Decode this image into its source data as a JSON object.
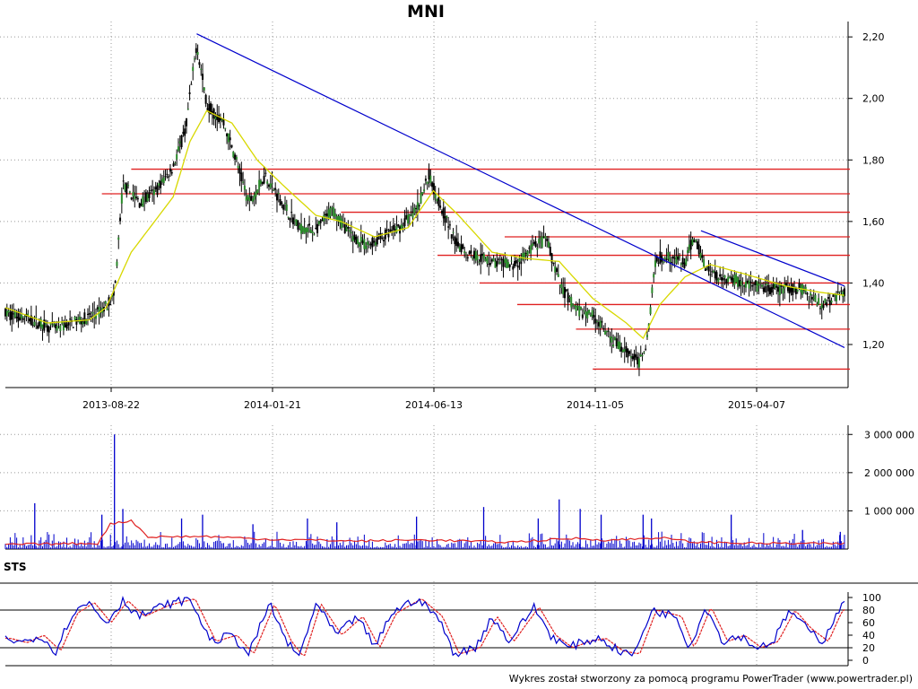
{
  "title": "MNI",
  "indicator_label": "STS",
  "footer": "Wykres został stworzony za pomocą programu PowerTrader (www.powertrader.pl)",
  "colors": {
    "candle": "#000000",
    "moving_average": "#d8d800",
    "trendline": "#0000cc",
    "support_resistance": "#e02020",
    "volume": "#0000cc",
    "volume_average": "#e02020",
    "sts_k": "#0000cc",
    "sts_d": "#e02020",
    "grid": "#999999"
  },
  "chart_data": [
    {
      "type": "candlestick",
      "title": "MNI",
      "x_tick_labels": [
        "2013-08-22",
        "2014-01-21",
        "2014-06-13",
        "2014-11-05",
        "2015-04-07"
      ],
      "y_tick_labels": [
        "1,20",
        "1,40",
        "1,60",
        "1,80",
        "2,00",
        "2,20"
      ],
      "y_ticks": [
        1.2,
        1.4,
        1.6,
        1.8,
        2.0,
        2.2
      ],
      "ylim": [
        1.06,
        2.25
      ],
      "grid": true,
      "price_anchors": [
        {
          "x": 0,
          "y": 1.3
        },
        {
          "x": 0.02,
          "y": 1.29
        },
        {
          "x": 0.04,
          "y": 1.27
        },
        {
          "x": 0.06,
          "y": 1.25
        },
        {
          "x": 0.08,
          "y": 1.27
        },
        {
          "x": 0.1,
          "y": 1.29
        },
        {
          "x": 0.115,
          "y": 1.31
        },
        {
          "x": 0.13,
          "y": 1.36
        },
        {
          "x": 0.14,
          "y": 1.72
        },
        {
          "x": 0.16,
          "y": 1.66
        },
        {
          "x": 0.18,
          "y": 1.7
        },
        {
          "x": 0.2,
          "y": 1.78
        },
        {
          "x": 0.215,
          "y": 1.9
        },
        {
          "x": 0.228,
          "y": 2.18
        },
        {
          "x": 0.24,
          "y": 1.98
        },
        {
          "x": 0.26,
          "y": 1.92
        },
        {
          "x": 0.275,
          "y": 1.8
        },
        {
          "x": 0.29,
          "y": 1.66
        },
        {
          "x": 0.31,
          "y": 1.75
        },
        {
          "x": 0.33,
          "y": 1.66
        },
        {
          "x": 0.35,
          "y": 1.58
        },
        {
          "x": 0.37,
          "y": 1.57
        },
        {
          "x": 0.39,
          "y": 1.64
        },
        {
          "x": 0.41,
          "y": 1.56
        },
        {
          "x": 0.43,
          "y": 1.52
        },
        {
          "x": 0.45,
          "y": 1.55
        },
        {
          "x": 0.47,
          "y": 1.58
        },
        {
          "x": 0.49,
          "y": 1.64
        },
        {
          "x": 0.505,
          "y": 1.75
        },
        {
          "x": 0.52,
          "y": 1.64
        },
        {
          "x": 0.535,
          "y": 1.54
        },
        {
          "x": 0.55,
          "y": 1.5
        },
        {
          "x": 0.57,
          "y": 1.48
        },
        {
          "x": 0.59,
          "y": 1.46
        },
        {
          "x": 0.61,
          "y": 1.46
        },
        {
          "x": 0.63,
          "y": 1.52
        },
        {
          "x": 0.645,
          "y": 1.54
        },
        {
          "x": 0.66,
          "y": 1.4
        },
        {
          "x": 0.68,
          "y": 1.31
        },
        {
          "x": 0.7,
          "y": 1.3
        },
        {
          "x": 0.72,
          "y": 1.22
        },
        {
          "x": 0.74,
          "y": 1.18
        },
        {
          "x": 0.755,
          "y": 1.14
        },
        {
          "x": 0.765,
          "y": 1.22
        },
        {
          "x": 0.775,
          "y": 1.48
        },
        {
          "x": 0.79,
          "y": 1.49
        },
        {
          "x": 0.81,
          "y": 1.46
        },
        {
          "x": 0.82,
          "y": 1.55
        },
        {
          "x": 0.835,
          "y": 1.45
        },
        {
          "x": 0.85,
          "y": 1.42
        },
        {
          "x": 0.87,
          "y": 1.41
        },
        {
          "x": 0.89,
          "y": 1.39
        },
        {
          "x": 0.91,
          "y": 1.38
        },
        {
          "x": 0.93,
          "y": 1.38
        },
        {
          "x": 0.95,
          "y": 1.38
        },
        {
          "x": 0.97,
          "y": 1.33
        },
        {
          "x": 0.985,
          "y": 1.35
        },
        {
          "x": 1.0,
          "y": 1.37
        }
      ],
      "moving_average": [
        {
          "x": 0,
          "y": 1.32
        },
        {
          "x": 0.05,
          "y": 1.27
        },
        {
          "x": 0.1,
          "y": 1.28
        },
        {
          "x": 0.12,
          "y": 1.32
        },
        {
          "x": 0.15,
          "y": 1.5
        },
        {
          "x": 0.2,
          "y": 1.68
        },
        {
          "x": 0.22,
          "y": 1.86
        },
        {
          "x": 0.24,
          "y": 1.96
        },
        {
          "x": 0.27,
          "y": 1.92
        },
        {
          "x": 0.3,
          "y": 1.8
        },
        {
          "x": 0.33,
          "y": 1.72
        },
        {
          "x": 0.37,
          "y": 1.62
        },
        {
          "x": 0.4,
          "y": 1.6
        },
        {
          "x": 0.44,
          "y": 1.55
        },
        {
          "x": 0.48,
          "y": 1.58
        },
        {
          "x": 0.51,
          "y": 1.7
        },
        {
          "x": 0.54,
          "y": 1.62
        },
        {
          "x": 0.58,
          "y": 1.5
        },
        {
          "x": 0.62,
          "y": 1.48
        },
        {
          "x": 0.66,
          "y": 1.47
        },
        {
          "x": 0.7,
          "y": 1.35
        },
        {
          "x": 0.74,
          "y": 1.27
        },
        {
          "x": 0.76,
          "y": 1.22
        },
        {
          "x": 0.78,
          "y": 1.33
        },
        {
          "x": 0.81,
          "y": 1.42
        },
        {
          "x": 0.84,
          "y": 1.46
        },
        {
          "x": 0.88,
          "y": 1.43
        },
        {
          "x": 0.93,
          "y": 1.39
        },
        {
          "x": 0.97,
          "y": 1.37
        },
        {
          "x": 1.0,
          "y": 1.36
        }
      ],
      "trendlines": [
        {
          "from": {
            "x": 0.228,
            "y": 2.21
          },
          "to": {
            "x": 1.0,
            "y": 1.19
          }
        },
        {
          "from": {
            "x": 0.829,
            "y": 1.57
          },
          "to": {
            "x": 1.0,
            "y": 1.39
          }
        }
      ],
      "support_resistance": [
        {
          "y": 1.77,
          "x_from": 0.15,
          "x_to": 1.0
        },
        {
          "y": 1.69,
          "x_from": 0.115,
          "x_to": 1.0
        },
        {
          "y": 1.63,
          "x_from": 0.4,
          "x_to": 1.0
        },
        {
          "y": 1.55,
          "x_from": 0.595,
          "x_to": 1.0
        },
        {
          "y": 1.49,
          "x_from": 0.515,
          "x_to": 1.0
        },
        {
          "y": 1.4,
          "x_from": 0.565,
          "x_to": 1.0
        },
        {
          "y": 1.33,
          "x_from": 0.61,
          "x_to": 1.0
        },
        {
          "y": 1.25,
          "x_from": 0.68,
          "x_to": 1.0
        },
        {
          "y": 1.12,
          "x_from": 0.7,
          "x_to": 1.0
        }
      ]
    },
    {
      "type": "bar",
      "name": "volume",
      "y_tick_labels": [
        "1 000 000",
        "2 000 000",
        "3 000 000"
      ],
      "y_ticks": [
        1000000,
        2000000,
        3000000
      ],
      "ylim": [
        0,
        3100000
      ],
      "spikes": [
        {
          "x": 0.035,
          "y": 1200000
        },
        {
          "x": 0.115,
          "y": 900000
        },
        {
          "x": 0.13,
          "y": 3000000
        },
        {
          "x": 0.14,
          "y": 1050000
        },
        {
          "x": 0.21,
          "y": 800000
        },
        {
          "x": 0.235,
          "y": 900000
        },
        {
          "x": 0.295,
          "y": 650000
        },
        {
          "x": 0.36,
          "y": 800000
        },
        {
          "x": 0.395,
          "y": 700000
        },
        {
          "x": 0.49,
          "y": 850000
        },
        {
          "x": 0.57,
          "y": 1100000
        },
        {
          "x": 0.635,
          "y": 800000
        },
        {
          "x": 0.66,
          "y": 1300000
        },
        {
          "x": 0.685,
          "y": 1050000
        },
        {
          "x": 0.71,
          "y": 900000
        },
        {
          "x": 0.76,
          "y": 900000
        },
        {
          "x": 0.77,
          "y": 800000
        },
        {
          "x": 0.865,
          "y": 900000
        },
        {
          "x": 0.95,
          "y": 500000
        },
        {
          "x": 0.995,
          "y": 450000
        }
      ],
      "average": [
        {
          "x": 0,
          "y": 120000
        },
        {
          "x": 0.11,
          "y": 150000
        },
        {
          "x": 0.125,
          "y": 650000
        },
        {
          "x": 0.15,
          "y": 750000
        },
        {
          "x": 0.17,
          "y": 320000
        },
        {
          "x": 0.24,
          "y": 330000
        },
        {
          "x": 0.31,
          "y": 260000
        },
        {
          "x": 0.42,
          "y": 210000
        },
        {
          "x": 0.5,
          "y": 240000
        },
        {
          "x": 0.6,
          "y": 180000
        },
        {
          "x": 0.68,
          "y": 280000
        },
        {
          "x": 0.72,
          "y": 230000
        },
        {
          "x": 0.78,
          "y": 300000
        },
        {
          "x": 0.82,
          "y": 180000
        },
        {
          "x": 0.9,
          "y": 150000
        },
        {
          "x": 1.0,
          "y": 140000
        }
      ]
    },
    {
      "type": "line",
      "name": "STS",
      "y_tick_labels": [
        "0",
        "20",
        "40",
        "60",
        "80",
        "100"
      ],
      "y_ticks": [
        0,
        20,
        40,
        60,
        80,
        100
      ],
      "ylim": [
        0,
        100
      ],
      "reference_lines": [
        20,
        80
      ],
      "k_anchors": [
        {
          "x": 0,
          "y": 35
        },
        {
          "x": 0.02,
          "y": 28
        },
        {
          "x": 0.04,
          "y": 40
        },
        {
          "x": 0.06,
          "y": 15
        },
        {
          "x": 0.08,
          "y": 75
        },
        {
          "x": 0.1,
          "y": 92
        },
        {
          "x": 0.12,
          "y": 60
        },
        {
          "x": 0.14,
          "y": 95
        },
        {
          "x": 0.16,
          "y": 70
        },
        {
          "x": 0.19,
          "y": 88
        },
        {
          "x": 0.22,
          "y": 98
        },
        {
          "x": 0.245,
          "y": 30
        },
        {
          "x": 0.27,
          "y": 40
        },
        {
          "x": 0.29,
          "y": 10
        },
        {
          "x": 0.315,
          "y": 90
        },
        {
          "x": 0.335,
          "y": 30
        },
        {
          "x": 0.35,
          "y": 5
        },
        {
          "x": 0.37,
          "y": 90
        },
        {
          "x": 0.395,
          "y": 40
        },
        {
          "x": 0.42,
          "y": 70
        },
        {
          "x": 0.44,
          "y": 20
        },
        {
          "x": 0.46,
          "y": 75
        },
        {
          "x": 0.49,
          "y": 98
        },
        {
          "x": 0.515,
          "y": 70
        },
        {
          "x": 0.535,
          "y": 10
        },
        {
          "x": 0.56,
          "y": 20
        },
        {
          "x": 0.58,
          "y": 70
        },
        {
          "x": 0.6,
          "y": 30
        },
        {
          "x": 0.63,
          "y": 85
        },
        {
          "x": 0.65,
          "y": 40
        },
        {
          "x": 0.67,
          "y": 20
        },
        {
          "x": 0.69,
          "y": 30
        },
        {
          "x": 0.71,
          "y": 35
        },
        {
          "x": 0.73,
          "y": 15
        },
        {
          "x": 0.75,
          "y": 10
        },
        {
          "x": 0.77,
          "y": 80
        },
        {
          "x": 0.8,
          "y": 70
        },
        {
          "x": 0.815,
          "y": 20
        },
        {
          "x": 0.835,
          "y": 85
        },
        {
          "x": 0.855,
          "y": 30
        },
        {
          "x": 0.875,
          "y": 40
        },
        {
          "x": 0.895,
          "y": 20
        },
        {
          "x": 0.915,
          "y": 30
        },
        {
          "x": 0.935,
          "y": 80
        },
        {
          "x": 0.955,
          "y": 50
        },
        {
          "x": 0.975,
          "y": 30
        },
        {
          "x": 0.99,
          "y": 75
        },
        {
          "x": 1.0,
          "y": 90
        }
      ]
    }
  ]
}
